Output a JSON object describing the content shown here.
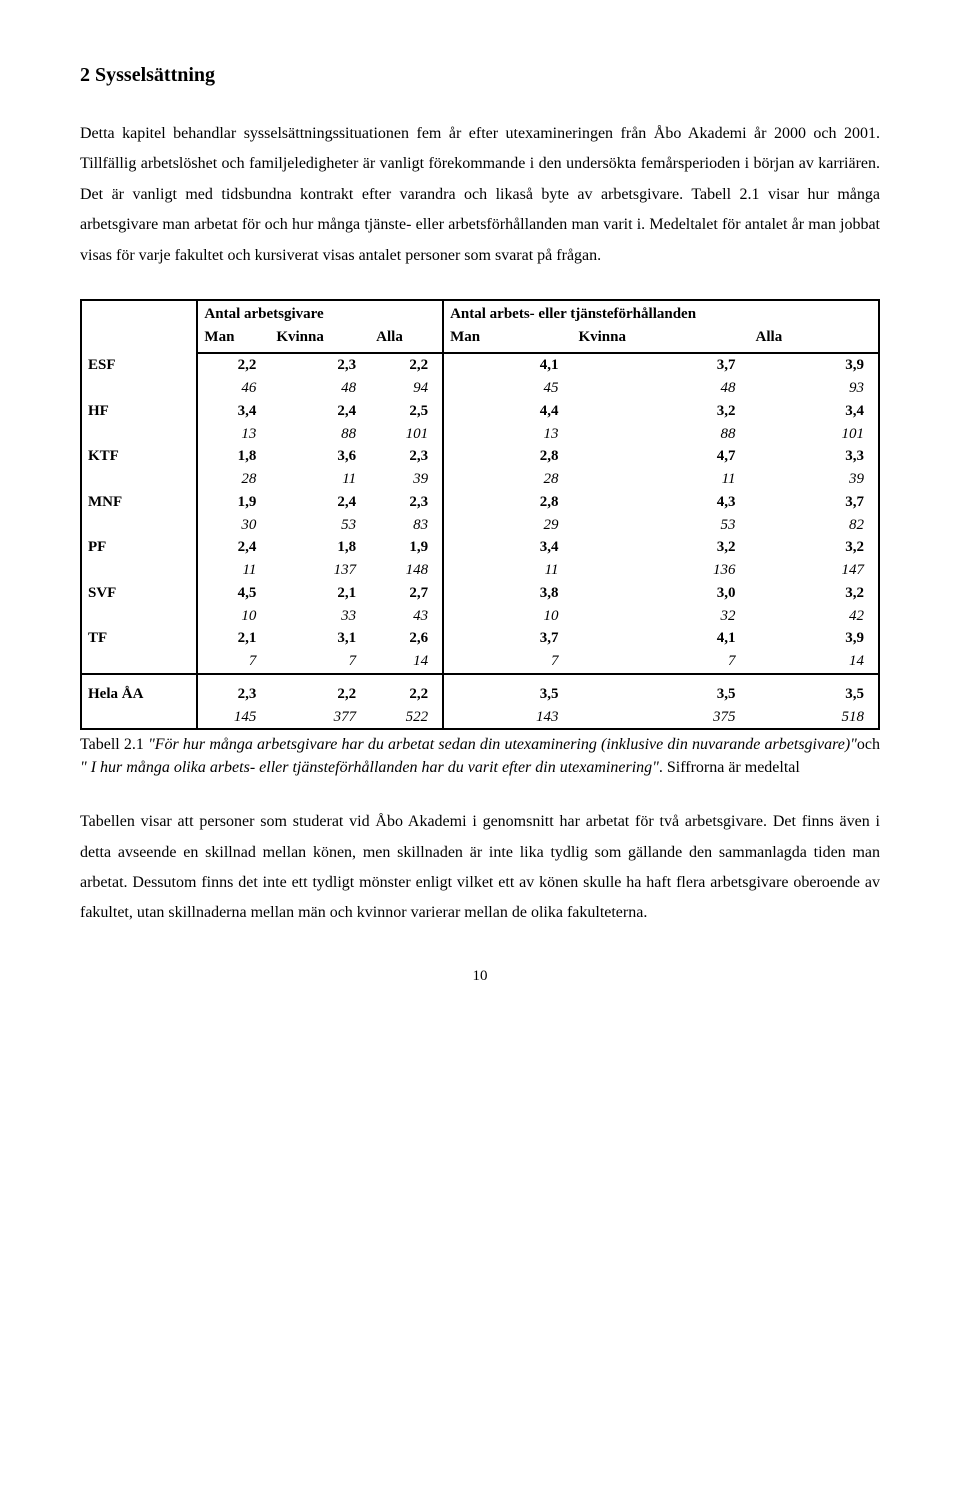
{
  "title": "2 Sysselsättning",
  "para1": "Detta kapitel behandlar sysselsättningssituationen fem år efter utexamineringen från Åbo Akademi år 2000 och 2001. Tillfällig arbetslöshet och familjeledigheter är vanligt förekommande i den undersökta femårsperioden i början av karriären. Det är vanligt med tidsbundna kontrakt efter varandra och likaså byte av arbetsgivare. Tabell 2.1 visar hur många arbetsgivare man arbetat för och hur många tjänste- eller arbetsförhållanden man varit i. Medeltalet för antalet år man jobbat visas för varje fakultet och kursiverat visas antalet personer som svarat på frågan.",
  "table": {
    "group_headers": [
      "Antal arbetsgivare",
      "Antal arbets- eller tjänsteförhållanden"
    ],
    "sub_headers": [
      "Man",
      "Kvinna",
      "Alla",
      "Man",
      "Kvinna",
      "Alla"
    ],
    "header_fontsize": 15,
    "cell_fontsize": 15,
    "italic_fontstyle": "italic",
    "border_color": "#000000",
    "background_color": "#ffffff",
    "rows": [
      {
        "label": "ESF",
        "vals": [
          "2,2",
          "2,3",
          "2,2",
          "4,1",
          "3,7",
          "3,9"
        ],
        "n": [
          "46",
          "48",
          "94",
          "45",
          "48",
          "93"
        ]
      },
      {
        "label": "HF",
        "vals": [
          "3,4",
          "2,4",
          "2,5",
          "4,4",
          "3,2",
          "3,4"
        ],
        "n": [
          "13",
          "88",
          "101",
          "13",
          "88",
          "101"
        ]
      },
      {
        "label": "KTF",
        "vals": [
          "1,8",
          "3,6",
          "2,3",
          "2,8",
          "4,7",
          "3,3"
        ],
        "n": [
          "28",
          "11",
          "39",
          "28",
          "11",
          "39"
        ]
      },
      {
        "label": "MNF",
        "vals": [
          "1,9",
          "2,4",
          "2,3",
          "2,8",
          "4,3",
          "3,7"
        ],
        "n": [
          "30",
          "53",
          "83",
          "29",
          "53",
          "82"
        ]
      },
      {
        "label": "PF",
        "vals": [
          "2,4",
          "1,8",
          "1,9",
          "3,4",
          "3,2",
          "3,2"
        ],
        "n": [
          "11",
          "137",
          "148",
          "11",
          "136",
          "147"
        ]
      },
      {
        "label": "SVF",
        "vals": [
          "4,5",
          "2,1",
          "2,7",
          "3,8",
          "3,0",
          "3,2"
        ],
        "n": [
          "10",
          "33",
          "43",
          "10",
          "32",
          "42"
        ]
      },
      {
        "label": "TF",
        "vals": [
          "2,1",
          "3,1",
          "2,6",
          "3,7",
          "4,1",
          "3,9"
        ],
        "n": [
          "7",
          "7",
          "14",
          "7",
          "7",
          "14"
        ]
      }
    ],
    "total": {
      "label": "Hela ÅA",
      "vals": [
        "2,3",
        "2,2",
        "2,2",
        "3,5",
        "3,5",
        "3,5"
      ],
      "n": [
        "145",
        "377",
        "522",
        "143",
        "375",
        "518"
      ]
    }
  },
  "caption_lead": "Tabell 2.1 ",
  "caption_ital1": "\"För hur många arbetsgivare har du arbetat sedan din utexaminering (inklusive din nuvarande arbetsgivare)\"",
  "caption_mid": "och ",
  "caption_ital2": "\" I hur många olika arbets- eller tjänsteförhållanden har du varit efter din utexaminering\"",
  "caption_tail": ". Siffrorna är medeltal",
  "para2": "Tabellen visar att personer som studerat vid Åbo Akademi i genomsnitt har arbetat för två arbetsgivare. Det finns även i detta avseende en skillnad mellan könen, men skillnaden är inte lika tydlig som gällande den sammanlagda tiden man arbetat. Dessutom finns det inte ett tydligt mönster enligt vilket ett av könen skulle ha haft flera arbetsgivare oberoende av fakultet, utan skillnaderna mellan män och kvinnor varierar mellan de olika fakulteterna.",
  "page_number": "10"
}
